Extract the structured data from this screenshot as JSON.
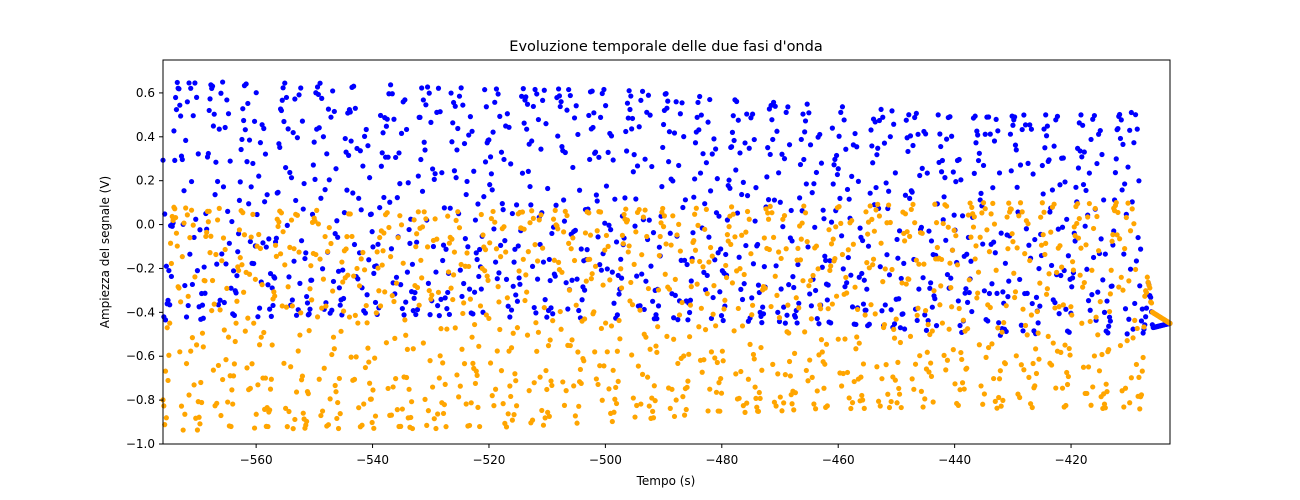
{
  "chart_data": {
    "type": "scatter",
    "title": "Evoluzione temporale delle due fasi d'onda",
    "xlabel": "Tempo (s)",
    "ylabel": "Ampiezza del segnale (V)",
    "xlim": [
      -576,
      -403
    ],
    "ylim": [
      -1.0,
      0.75
    ],
    "xticks": [
      -560,
      -540,
      -520,
      -500,
      -480,
      -460,
      -440,
      -420
    ],
    "yticks": [
      -1.0,
      -0.8,
      -0.6,
      -0.4,
      -0.2,
      0.0,
      0.2,
      0.4,
      0.6
    ],
    "grid": false,
    "legend": "none",
    "sampling": {
      "t_start": -576,
      "t_end": -403,
      "count": 1200
    },
    "series": [
      {
        "color": "#0000ff",
        "envelope_top": {
          "x": [
            -576,
            -560,
            -540,
            -520,
            -500,
            -480,
            -460,
            -440,
            -430,
            -420,
            -412,
            -410,
            -408,
            -406,
            -403
          ],
          "y": [
            0.65,
            0.65,
            0.64,
            0.62,
            0.62,
            0.58,
            0.54,
            0.5,
            0.5,
            0.5,
            0.5,
            0.52,
            0.5,
            -0.47,
            -0.45
          ]
        },
        "envelope_bottom": {
          "x": [
            -576,
            -560,
            -540,
            -520,
            -500,
            -480,
            -460,
            -440,
            -430,
            -420,
            -412,
            -410,
            -408,
            -406,
            -403
          ],
          "y": [
            -0.44,
            -0.42,
            -0.41,
            -0.42,
            -0.43,
            -0.44,
            -0.46,
            -0.49,
            -0.51,
            -0.5,
            -0.5,
            -0.5,
            -0.5,
            -0.47,
            -0.45
          ]
        }
      },
      {
        "color": "#ffa500",
        "envelope_top": {
          "x": [
            -576,
            -560,
            -540,
            -520,
            -500,
            -480,
            -460,
            -440,
            -430,
            -420,
            -412,
            -410,
            -408,
            -406,
            -403
          ],
          "y": [
            0.08,
            0.07,
            0.06,
            0.06,
            0.07,
            0.08,
            0.09,
            0.1,
            0.1,
            0.1,
            0.1,
            0.1,
            0.1,
            -0.4,
            -0.45
          ]
        },
        "envelope_bottom": {
          "x": [
            -576,
            -560,
            -540,
            -520,
            -500,
            -480,
            -460,
            -440,
            -430,
            -420,
            -412,
            -410,
            -408,
            -406,
            -403
          ],
          "y": [
            -0.94,
            -0.93,
            -0.93,
            -0.93,
            -0.9,
            -0.86,
            -0.84,
            -0.83,
            -0.84,
            -0.84,
            -0.84,
            -0.84,
            -0.84,
            -0.4,
            -0.45
          ]
        }
      }
    ]
  }
}
